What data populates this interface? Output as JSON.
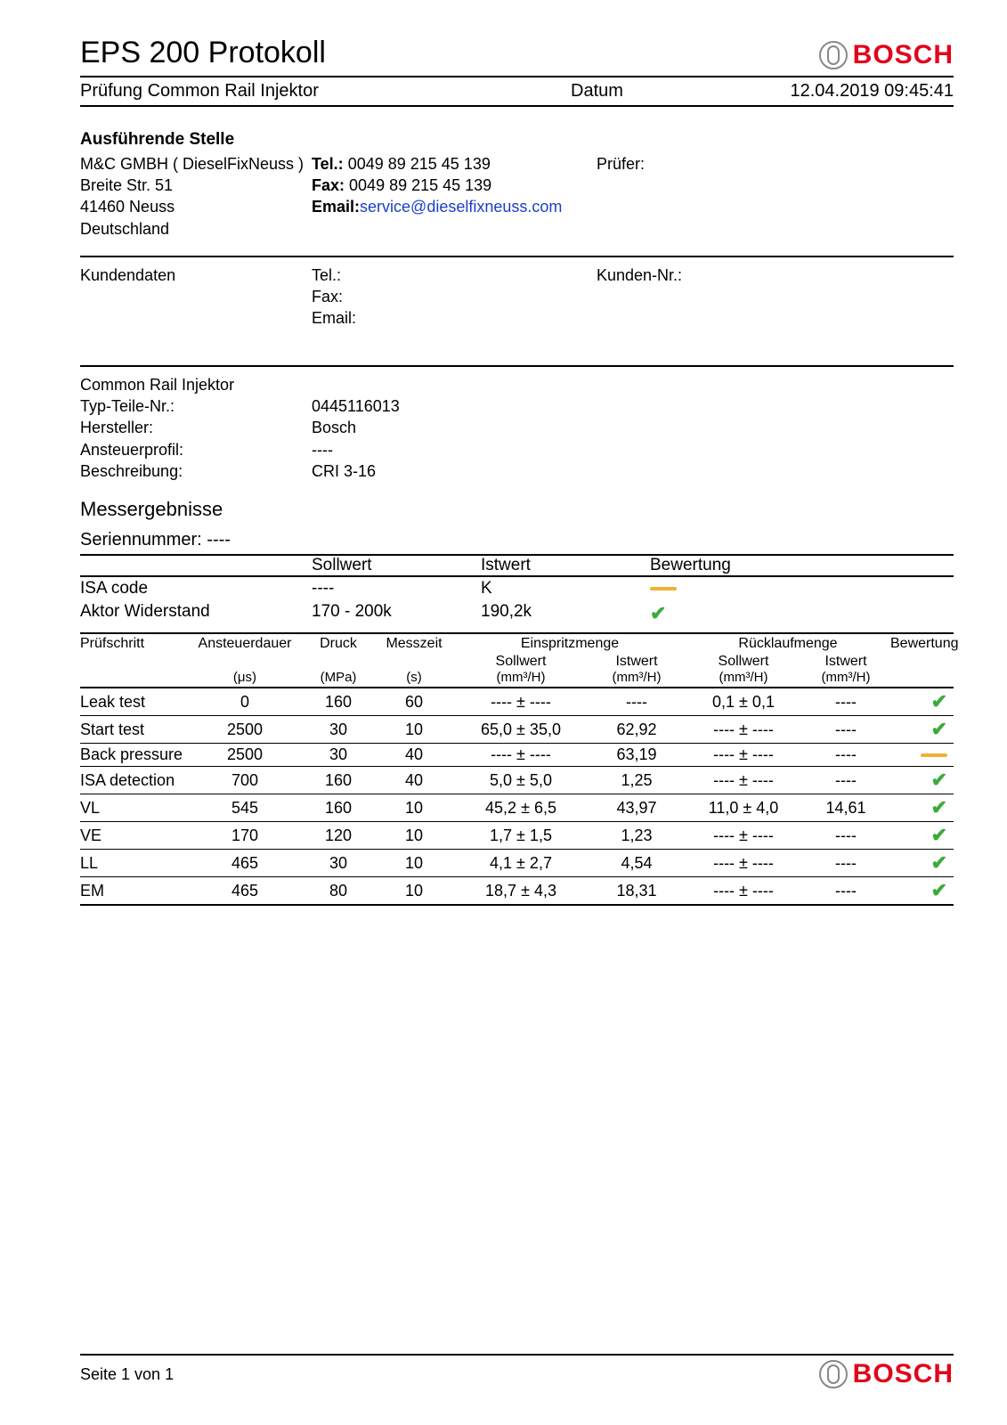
{
  "colors": {
    "text": "#000000",
    "bg": "#ffffff",
    "brand_red": "#e2001a",
    "link_blue": "#1a3fc9",
    "check_green": "#3aab3a",
    "warn_amber": "#f0b030",
    "rule": "#000000",
    "logo_grey": "#888888"
  },
  "typography": {
    "title_pt": 34,
    "body_pt": 18,
    "small_pt": 16
  },
  "header": {
    "title": "EPS 200 Protokoll",
    "logo_text": "BOSCH",
    "subtitle": "Prüfung Common Rail Injektor",
    "date_label": "Datum",
    "date_value": "12.04.2019 09:45:41"
  },
  "executing": {
    "heading": "Ausführende Stelle",
    "name": "M&C GMBH ( DieselFixNeuss )",
    "street": "Breite Str. 51",
    "zip_city": "41460 Neuss",
    "country": "Deutschland",
    "tel_label": "Tel.:",
    "tel": "0049 89 215 45 139",
    "fax_label": "Fax:",
    "fax": "0049 89 215 45 139",
    "email_label": "Email:",
    "email": "service@dieselfixneuss.com",
    "inspector_label": "Prüfer:"
  },
  "customer": {
    "heading": "Kundendaten",
    "tel_label": "Tel.:",
    "fax_label": "Fax:",
    "email_label": "Email:",
    "customer_no_label": "Kunden-Nr.:"
  },
  "part": {
    "heading": "Common Rail Injektor",
    "type_label": "Typ-Teile-Nr.:",
    "type_value": "0445116013",
    "mfr_label": "Hersteller:",
    "mfr_value": "Bosch",
    "profile_label": "Ansteuerprofil:",
    "profile_value": "----",
    "desc_label": "Beschreibung:",
    "desc_value": "CRI 3-16"
  },
  "results": {
    "heading": "Messergebnisse",
    "serial_label": "Seriennummer:",
    "serial_value": "----",
    "columns": {
      "sollwert": "Sollwert",
      "istwert": "Istwert",
      "bewertung": "Bewertung"
    },
    "rows": [
      {
        "name": "ISA code",
        "soll": "----",
        "ist": "K",
        "mark": "warn"
      },
      {
        "name": "Aktor Widerstand",
        "soll": "170 - 200k",
        "ist": "190,2k",
        "mark": "ok"
      }
    ]
  },
  "detail": {
    "head": {
      "step": "Prüfschritt",
      "duration": "Ansteuerdauer",
      "pressure": "Druck",
      "mtime": "Messzeit",
      "inj_group": "Einspritzmenge",
      "ret_group": "Rücklaufmenge",
      "bewertung": "Bewertung",
      "unit_duration": "(μs)",
      "unit_pressure": "(MPa)",
      "unit_time": "(s)",
      "soll": "Sollwert",
      "ist": "Istwert",
      "unit_flow": "(mm³/H)"
    },
    "rows": [
      {
        "step": "Leak test",
        "dur": "0",
        "p": "160",
        "t": "60",
        "inj_s": "---- ± ----",
        "inj_i": "----",
        "ret_s": "0,1 ± 0,1",
        "ret_i": "----",
        "mark": "ok"
      },
      {
        "step": "Start test",
        "dur": "2500",
        "p": "30",
        "t": "10",
        "inj_s": "65,0 ± 35,0",
        "inj_i": "62,92",
        "ret_s": "---- ± ----",
        "ret_i": "----",
        "mark": "ok"
      },
      {
        "step": "Back pressure",
        "dur": "2500",
        "p": "30",
        "t": "40",
        "inj_s": "---- ± ----",
        "inj_i": "63,19",
        "ret_s": "---- ± ----",
        "ret_i": "----",
        "mark": "warn"
      },
      {
        "step": "ISA detection",
        "dur": "700",
        "p": "160",
        "t": "40",
        "inj_s": "5,0 ± 5,0",
        "inj_i": "1,25",
        "ret_s": "---- ± ----",
        "ret_i": "----",
        "mark": "ok"
      },
      {
        "step": "VL",
        "dur": "545",
        "p": "160",
        "t": "10",
        "inj_s": "45,2 ± 6,5",
        "inj_i": "43,97",
        "ret_s": "11,0 ± 4,0",
        "ret_i": "14,61",
        "mark": "ok"
      },
      {
        "step": "VE",
        "dur": "170",
        "p": "120",
        "t": "10",
        "inj_s": "1,7 ± 1,5",
        "inj_i": "1,23",
        "ret_s": "---- ± ----",
        "ret_i": "----",
        "mark": "ok"
      },
      {
        "step": "LL",
        "dur": "465",
        "p": "30",
        "t": "10",
        "inj_s": "4,1 ± 2,7",
        "inj_i": "4,54",
        "ret_s": "---- ± ----",
        "ret_i": "----",
        "mark": "ok"
      },
      {
        "step": "EM",
        "dur": "465",
        "p": "80",
        "t": "10",
        "inj_s": "18,7 ± 4,3",
        "inj_i": "18,31",
        "ret_s": "---- ± ----",
        "ret_i": "----",
        "mark": "ok"
      }
    ]
  },
  "footer": {
    "page": "Seite 1 von 1",
    "logo_text": "BOSCH"
  }
}
